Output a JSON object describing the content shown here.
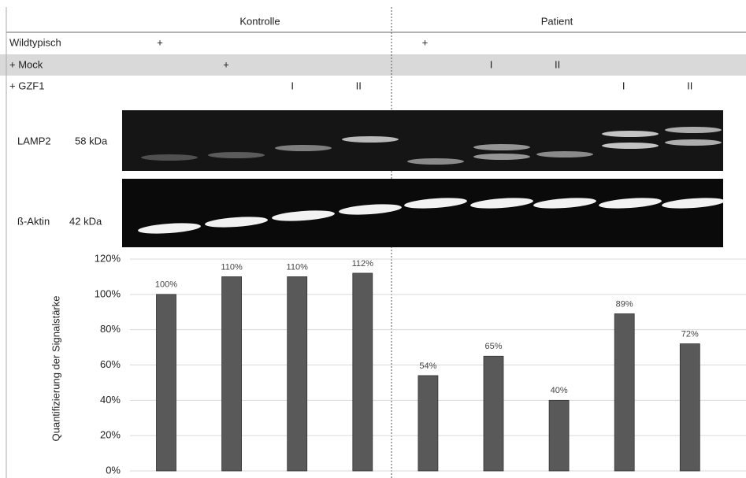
{
  "groups": [
    "Kontrolle",
    "Patient"
  ],
  "rows": [
    {
      "label": "Wildtypisch",
      "marks": [
        "+",
        null,
        null,
        null,
        "+",
        null,
        null,
        null,
        null
      ]
    },
    {
      "label": "+ Mock",
      "marks": [
        null,
        "+",
        null,
        null,
        null,
        "I",
        "II",
        null,
        null
      ]
    },
    {
      "label": "+ GZF1",
      "marks": [
        null,
        null,
        "I",
        "II",
        null,
        null,
        null,
        "I",
        "II"
      ]
    }
  ],
  "blots": [
    {
      "name": "LAMP2",
      "size": "58 kDa"
    },
    {
      "name": "ß-Aktin",
      "size": "42 kDa"
    }
  ],
  "chart_data": {
    "type": "bar",
    "y_label": "Quantifizierung der Signalstärke",
    "values": [
      100,
      110,
      110,
      112,
      54,
      65,
      40,
      89,
      72
    ],
    "value_labels": [
      "100%",
      "110%",
      "110%",
      "112%",
      "54%",
      "65%",
      "40%",
      "89%",
      "72%"
    ],
    "color": "#595959",
    "ylim": [
      0,
      120
    ],
    "yticks": [
      {
        "value": 0,
        "label": "0%"
      },
      {
        "value": 20,
        "label": "20%"
      },
      {
        "value": 40,
        "label": "40%"
      },
      {
        "value": 60,
        "label": "60%"
      },
      {
        "value": 80,
        "label": "80%"
      },
      {
        "value": 100,
        "label": "100%"
      },
      {
        "value": 120,
        "label": "120%"
      }
    ],
    "grid": true
  }
}
